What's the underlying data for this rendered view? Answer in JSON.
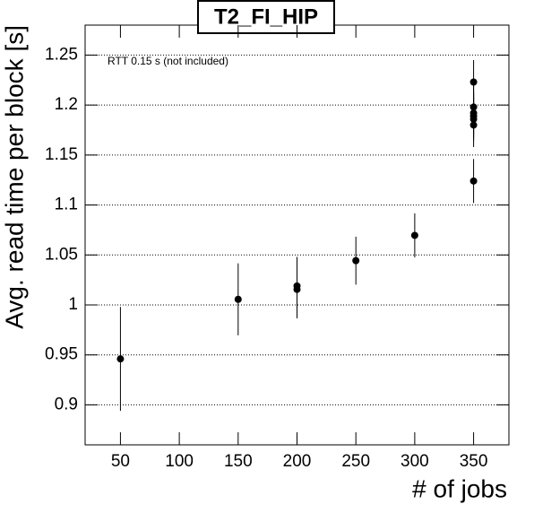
{
  "chart_data": {
    "type": "scatter",
    "title": "T2_FI_HIP",
    "annotation": "RTT 0.15 s (not included)",
    "x_label": "# of jobs",
    "y_label": "Avg. read time per block [s]",
    "x": [
      50,
      150,
      200,
      200,
      250,
      300,
      350,
      350,
      350,
      350,
      350,
      350,
      350
    ],
    "series": [
      {
        "color": "#000000",
        "values": [
          0.946,
          1.0056,
          1.019,
          1.0155,
          1.0443,
          1.0696,
          1.223,
          1.198,
          1.192,
          1.189,
          1.186,
          1.18,
          1.124
        ],
        "errors": [
          0.052,
          0.036,
          0.029,
          0.029,
          0.024,
          0.022,
          0.022,
          0.022,
          0.022,
          0.022,
          0.022,
          0.022,
          0.022
        ]
      }
    ],
    "xlim": [
      20,
      380
    ],
    "ylim": [
      0.86,
      1.28
    ],
    "xticks": [
      50,
      100,
      150,
      200,
      250,
      300,
      350
    ],
    "yticks": [
      0.9,
      0.95,
      1,
      1.05,
      1.1,
      1.15,
      1.2,
      1.25
    ],
    "grid": true
  }
}
